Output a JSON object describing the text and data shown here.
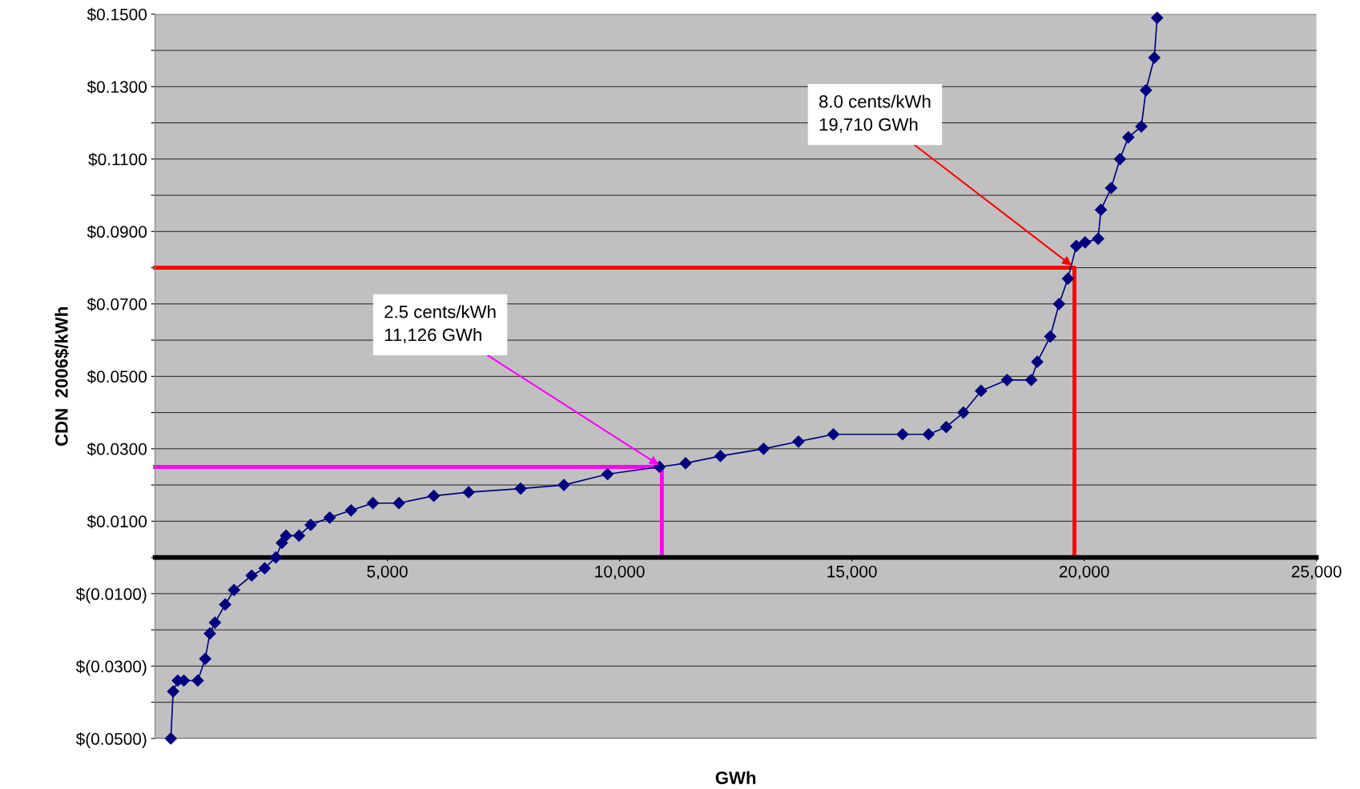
{
  "chart_data": {
    "type": "line",
    "xlabel": "GWh",
    "ylabel": "CDN  2006$/kWh",
    "xlim": [
      0,
      25000
    ],
    "xticks": [
      {
        "value": 0,
        "label": null
      },
      {
        "value": 5000,
        "label": "5,000"
      },
      {
        "value": 10000,
        "label": "10,000"
      },
      {
        "value": 15000,
        "label": "15,000"
      },
      {
        "value": 20000,
        "label": "20,000"
      },
      {
        "value": 25000,
        "label": "25,000"
      }
    ],
    "ylim": [
      -0.05,
      0.15
    ],
    "yticks": [
      {
        "value": -0.05,
        "label": "$(0.0500)"
      },
      {
        "value": -0.04,
        "label": null
      },
      {
        "value": -0.03,
        "label": "$(0.0300)"
      },
      {
        "value": -0.02,
        "label": null
      },
      {
        "value": -0.01,
        "label": "$(0.0100)"
      },
      {
        "value": 0,
        "label": null
      },
      {
        "value": 0.01,
        "label": "$0.0100"
      },
      {
        "value": 0.02,
        "label": null
      },
      {
        "value": 0.03,
        "label": "$0.0300"
      },
      {
        "value": 0.04,
        "label": null
      },
      {
        "value": 0.05,
        "label": "$0.0500"
      },
      {
        "value": 0.06,
        "label": null
      },
      {
        "value": 0.07,
        "label": "$0.0700"
      },
      {
        "value": 0.08,
        "label": null
      },
      {
        "value": 0.09,
        "label": "$0.0900"
      },
      {
        "value": 0.1,
        "label": null
      },
      {
        "value": 0.11,
        "label": "$0.1100"
      },
      {
        "value": 0.12,
        "label": null
      },
      {
        "value": 0.13,
        "label": "$0.1300"
      },
      {
        "value": 0.14,
        "label": null
      },
      {
        "value": 0.15,
        "label": "$0.1500"
      }
    ],
    "grid": "y",
    "marker": "diamond",
    "line_style": "solid",
    "series": [
      {
        "color": "#000080",
        "x": [
          340,
          390,
          490,
          620,
          920,
          1080,
          1180,
          1290,
          1510,
          1700,
          2080,
          2360,
          2600,
          2730,
          2820,
          3100,
          3350,
          3760,
          4220,
          4690,
          5250,
          6000,
          6750,
          7870,
          8800,
          9740,
          10860,
          11420,
          12170,
          13100,
          13850,
          14600,
          16090,
          16650,
          17030,
          17400,
          17780,
          18340,
          18860,
          18990,
          19270,
          19460,
          19650,
          19830,
          20020,
          20300,
          20360,
          20580,
          20770,
          20950,
          21230,
          21330,
          21510,
          21570
        ],
        "values": [
          -0.05,
          -0.037,
          -0.034,
          -0.034,
          -0.034,
          -0.028,
          -0.021,
          -0.018,
          -0.013,
          -0.009,
          -0.005,
          -0.003,
          0,
          0.004,
          0.006,
          0.006,
          0.009,
          0.011,
          0.013,
          0.015,
          0.015,
          0.017,
          0.018,
          0.019,
          0.02,
          0.023,
          0.025,
          0.026,
          0.028,
          0.03,
          0.032,
          0.034,
          0.034,
          0.034,
          0.036,
          0.04,
          0.046,
          0.049,
          0.049,
          0.054,
          0.061,
          0.07,
          0.077,
          0.086,
          0.087,
          0.088,
          0.096,
          0.102,
          0.11,
          0.116,
          0.119,
          0.129,
          0.138,
          0.149
        ]
      },
      {
        "color": "#ff00ff",
        "marker": "none",
        "x": [
          0,
          10910,
          10910
        ],
        "values": [
          0.025,
          0.025,
          0
        ]
      },
      {
        "color": "#ff0000",
        "marker": "none",
        "x": [
          0,
          19790,
          19790
        ],
        "values": [
          0.08,
          0.08,
          0
        ]
      }
    ],
    "annotations": [
      {
        "text": "2.5 cents/kWh\n11,126 GWh",
        "x": 10910,
        "y": 0.025
      },
      {
        "text": "8.0 cents/kWh\n19,710 GWh",
        "x": 19790,
        "y": 0.08
      }
    ]
  }
}
